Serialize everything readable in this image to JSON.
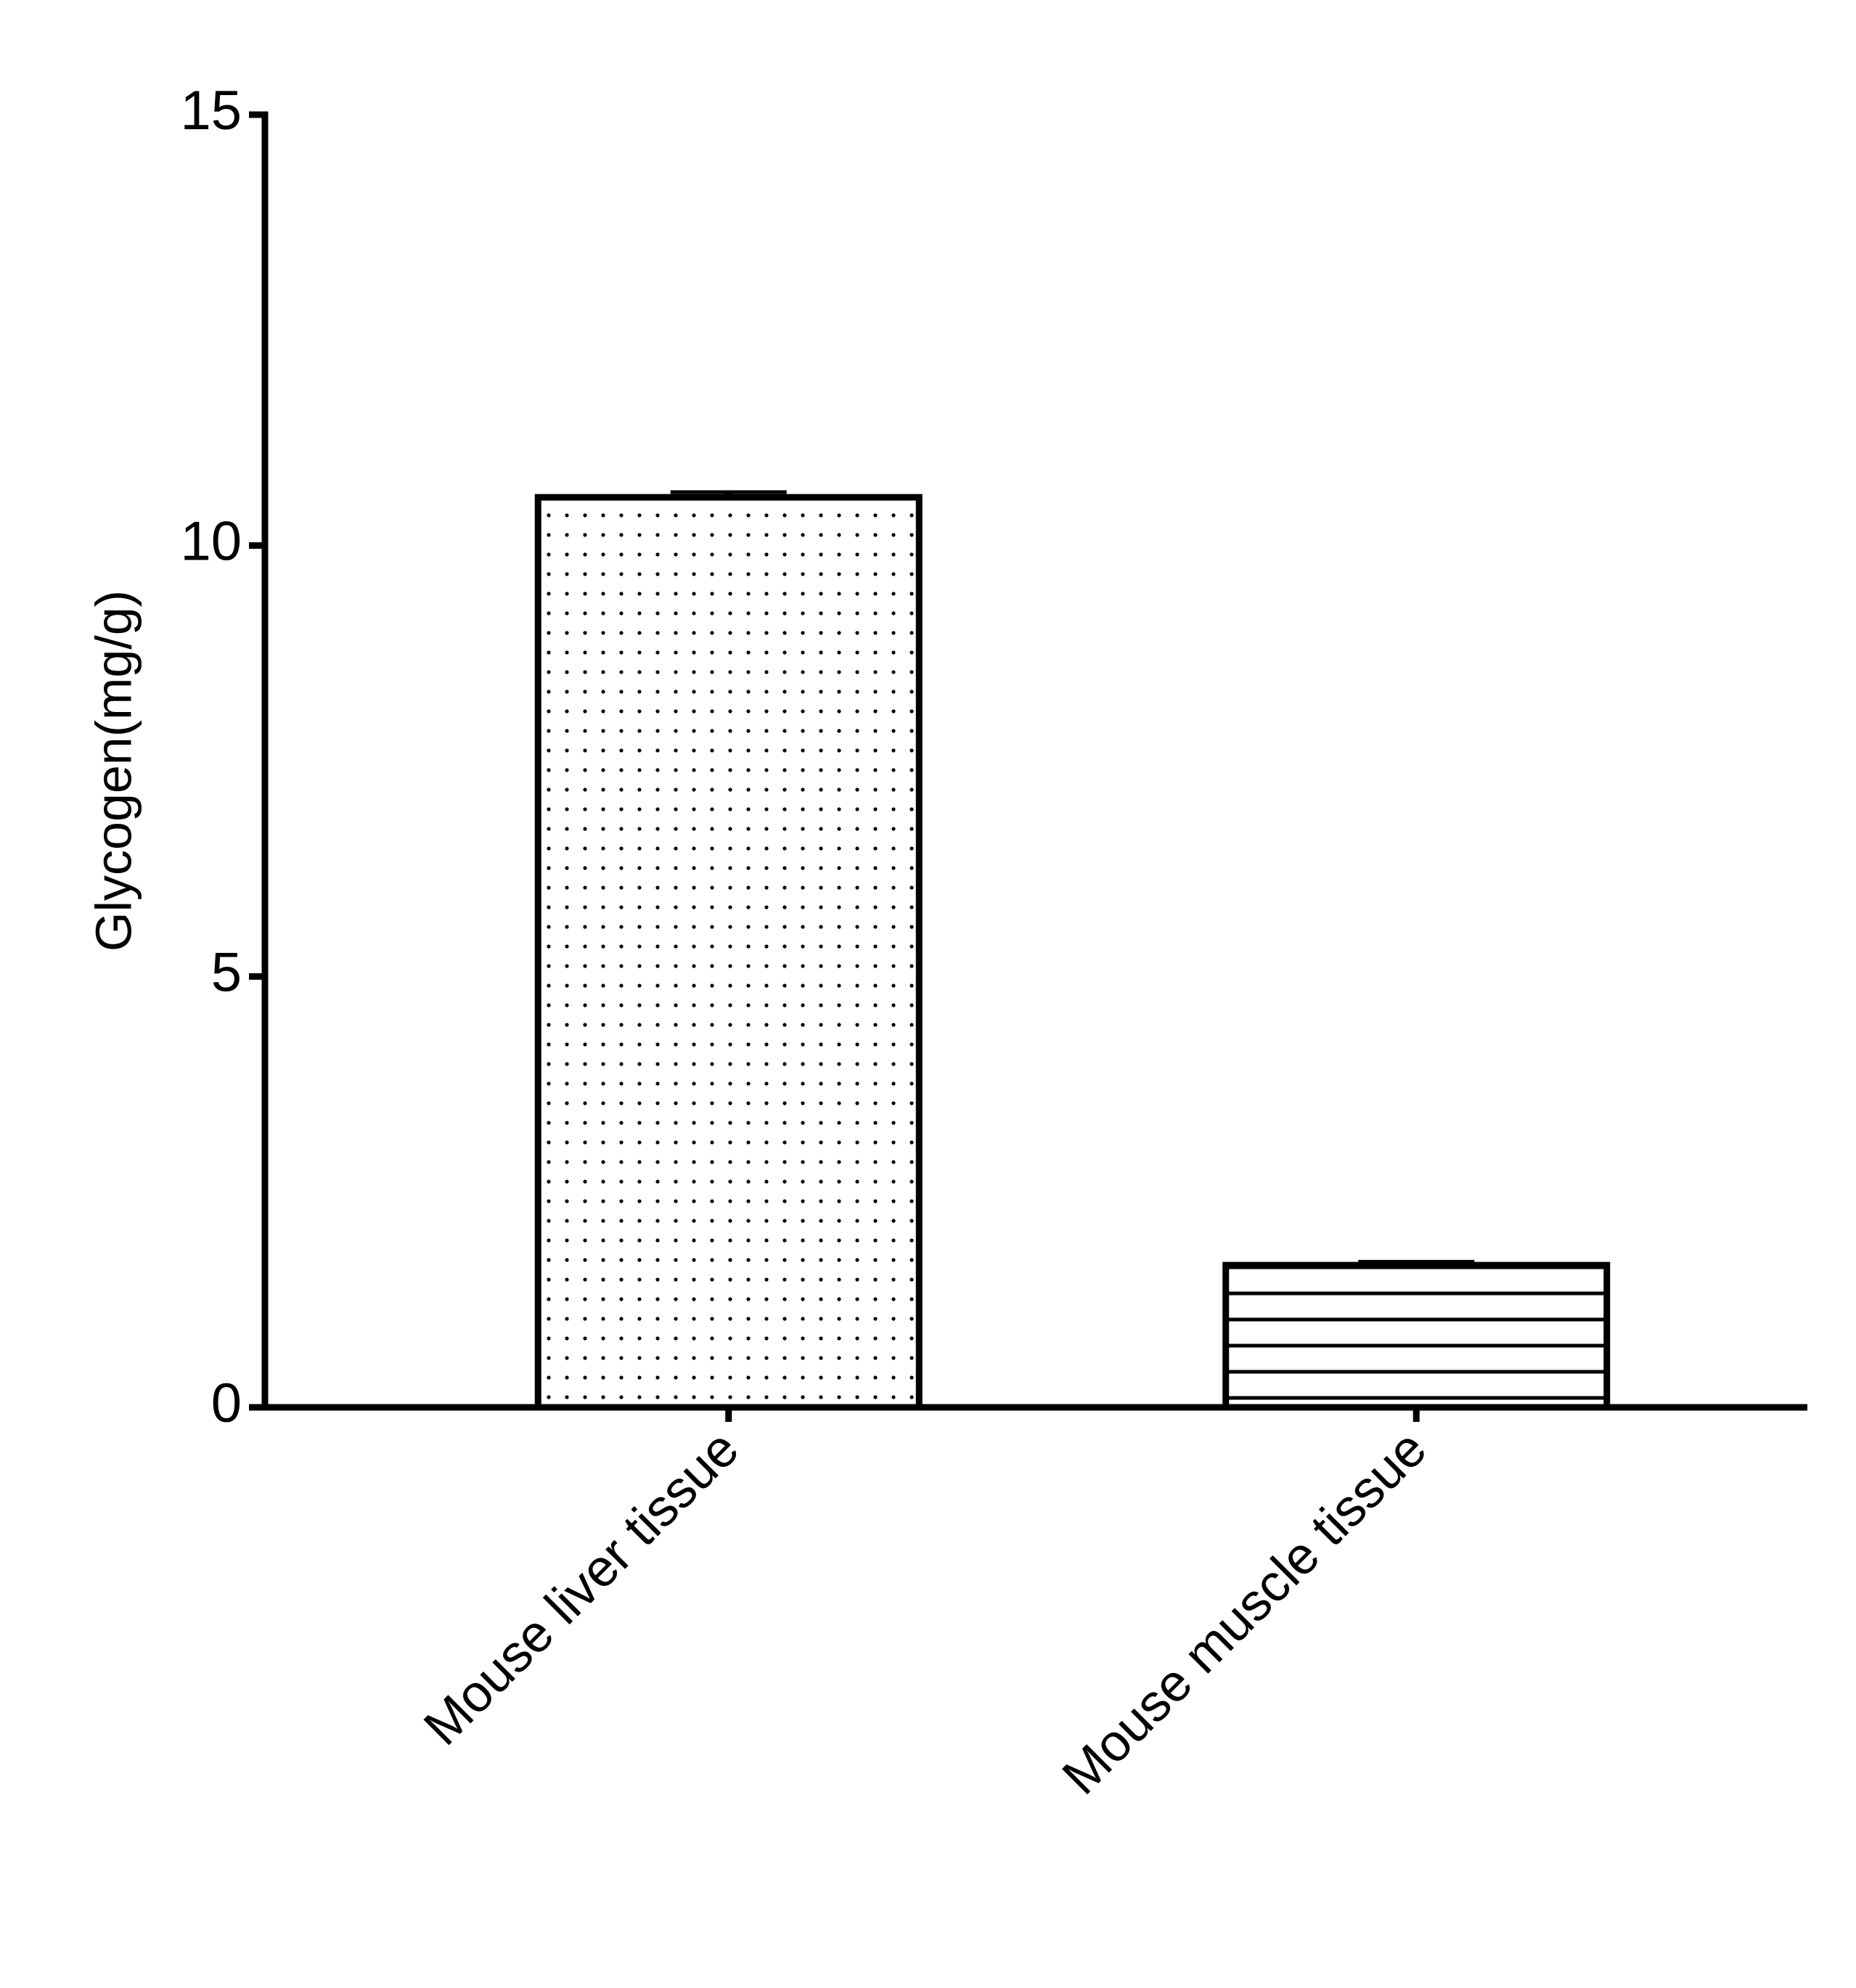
{
  "chart_data": {
    "type": "bar",
    "y_label": "Glycogen(mg/g)",
    "categories": [
      "Mouse liver tissue",
      "Mouse muscle tissue"
    ],
    "values": [
      10.56,
      1.65
    ],
    "errors": [
      0.06,
      0.04
    ],
    "patterns": [
      "dots",
      "horizontal-lines"
    ],
    "color": "#000000",
    "ylim": [
      0,
      15
    ],
    "yticks": [
      0,
      5,
      10,
      15
    ],
    "grid": false
  }
}
